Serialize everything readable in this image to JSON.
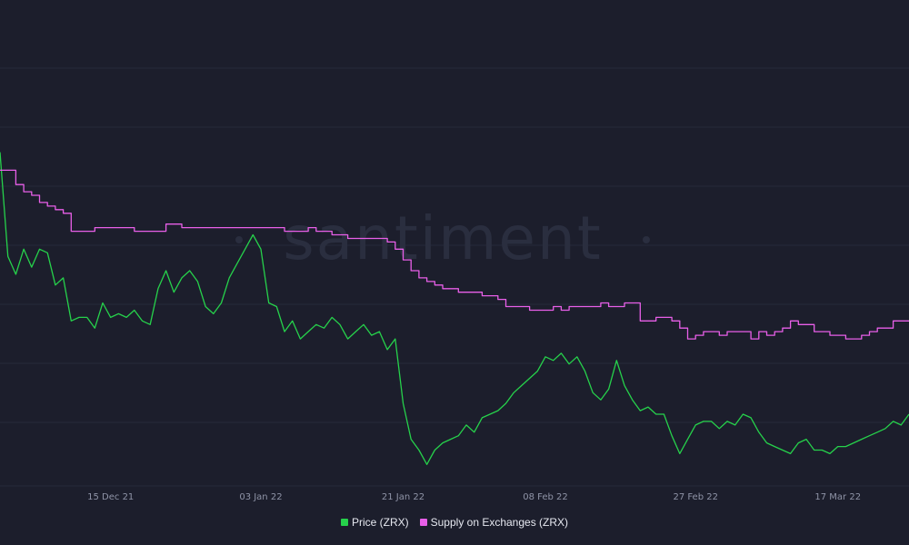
{
  "chart_data": {
    "type": "line",
    "title": "",
    "watermark": "santiment",
    "x_ticks": [
      "15 Dec 21",
      "03 Jan 22",
      "21 Jan 22",
      "08 Feb 22",
      "27 Feb 22",
      "17 Mar 22"
    ],
    "x_range": [
      "2021-12-01",
      "2022-03-26"
    ],
    "grid": true,
    "legend_position": "bottom-center",
    "series": [
      {
        "name": "Price (ZRX)",
        "color": "#26d14b",
        "y_range": [
          0,
          100
        ],
        "points": [
          [
            "2021-12-01",
            93
          ],
          [
            "2021-12-02",
            64
          ],
          [
            "2021-12-03",
            59
          ],
          [
            "2021-12-04",
            66
          ],
          [
            "2021-12-05",
            61
          ],
          [
            "2021-12-06",
            66
          ],
          [
            "2021-12-07",
            65
          ],
          [
            "2021-12-08",
            56
          ],
          [
            "2021-12-09",
            58
          ],
          [
            "2021-12-10",
            46
          ],
          [
            "2021-12-11",
            47
          ],
          [
            "2021-12-12",
            47
          ],
          [
            "2021-12-13",
            44
          ],
          [
            "2021-12-14",
            51
          ],
          [
            "2021-12-15",
            47
          ],
          [
            "2021-12-16",
            48
          ],
          [
            "2021-12-17",
            47
          ],
          [
            "2021-12-18",
            49
          ],
          [
            "2021-12-19",
            46
          ],
          [
            "2021-12-20",
            45
          ],
          [
            "2021-12-21",
            55
          ],
          [
            "2021-12-22",
            60
          ],
          [
            "2021-12-23",
            54
          ],
          [
            "2021-12-24",
            58
          ],
          [
            "2021-12-25",
            60
          ],
          [
            "2021-12-26",
            57
          ],
          [
            "2021-12-27",
            50
          ],
          [
            "2021-12-28",
            48
          ],
          [
            "2021-12-29",
            51
          ],
          [
            "2021-12-30",
            58
          ],
          [
            "2021-12-31",
            62
          ],
          [
            "2022-01-01",
            66
          ],
          [
            "2022-01-02",
            70
          ],
          [
            "2022-01-03",
            66
          ],
          [
            "2022-01-04",
            51
          ],
          [
            "2022-01-05",
            50
          ],
          [
            "2022-01-06",
            43
          ],
          [
            "2022-01-07",
            46
          ],
          [
            "2022-01-08",
            41
          ],
          [
            "2022-01-09",
            43
          ],
          [
            "2022-01-10",
            45
          ],
          [
            "2022-01-11",
            44
          ],
          [
            "2022-01-12",
            47
          ],
          [
            "2022-01-13",
            45
          ],
          [
            "2022-01-14",
            41
          ],
          [
            "2022-01-15",
            43
          ],
          [
            "2022-01-16",
            45
          ],
          [
            "2022-01-17",
            42
          ],
          [
            "2022-01-18",
            43
          ],
          [
            "2022-01-19",
            38
          ],
          [
            "2022-01-20",
            41
          ],
          [
            "2022-01-21",
            23
          ],
          [
            "2022-01-22",
            13
          ],
          [
            "2022-01-23",
            10
          ],
          [
            "2022-01-24",
            6
          ],
          [
            "2022-01-25",
            10
          ],
          [
            "2022-01-26",
            12
          ],
          [
            "2022-01-27",
            13
          ],
          [
            "2022-01-28",
            14
          ],
          [
            "2022-01-29",
            17
          ],
          [
            "2022-01-30",
            15
          ],
          [
            "2022-01-31",
            19
          ],
          [
            "2022-02-01",
            20
          ],
          [
            "2022-02-02",
            21
          ],
          [
            "2022-02-03",
            23
          ],
          [
            "2022-02-04",
            26
          ],
          [
            "2022-02-05",
            28
          ],
          [
            "2022-02-06",
            30
          ],
          [
            "2022-02-07",
            32
          ],
          [
            "2022-02-08",
            36
          ],
          [
            "2022-02-09",
            35
          ],
          [
            "2022-02-10",
            37
          ],
          [
            "2022-02-11",
            34
          ],
          [
            "2022-02-12",
            36
          ],
          [
            "2022-02-13",
            32
          ],
          [
            "2022-02-14",
            26
          ],
          [
            "2022-02-15",
            24
          ],
          [
            "2022-02-16",
            27
          ],
          [
            "2022-02-17",
            35
          ],
          [
            "2022-02-18",
            28
          ],
          [
            "2022-02-19",
            24
          ],
          [
            "2022-02-20",
            21
          ],
          [
            "2022-02-21",
            22
          ],
          [
            "2022-02-22",
            20
          ],
          [
            "2022-02-23",
            20
          ],
          [
            "2022-02-24",
            14
          ],
          [
            "2022-02-25",
            9
          ],
          [
            "2022-02-26",
            13
          ],
          [
            "2022-02-27",
            17
          ],
          [
            "2022-02-28",
            18
          ],
          [
            "2022-03-01",
            18
          ],
          [
            "2022-03-02",
            16
          ],
          [
            "2022-03-03",
            18
          ],
          [
            "2022-03-04",
            17
          ],
          [
            "2022-03-05",
            20
          ],
          [
            "2022-03-06",
            19
          ],
          [
            "2022-03-07",
            15
          ],
          [
            "2022-03-08",
            12
          ],
          [
            "2022-03-09",
            11
          ],
          [
            "2022-03-10",
            10
          ],
          [
            "2022-03-11",
            9
          ],
          [
            "2022-03-12",
            12
          ],
          [
            "2022-03-13",
            13
          ],
          [
            "2022-03-14",
            10
          ],
          [
            "2022-03-15",
            10
          ],
          [
            "2022-03-16",
            9
          ],
          [
            "2022-03-17",
            11
          ],
          [
            "2022-03-18",
            11
          ],
          [
            "2022-03-19",
            12
          ],
          [
            "2022-03-20",
            13
          ],
          [
            "2022-03-21",
            14
          ],
          [
            "2022-03-22",
            15
          ],
          [
            "2022-03-23",
            16
          ],
          [
            "2022-03-24",
            18
          ],
          [
            "2022-03-25",
            17
          ],
          [
            "2022-03-26",
            20
          ]
        ]
      },
      {
        "name": "Supply on Exchanges (ZRX)",
        "color": "#e85fe8",
        "y_range": [
          0,
          100
        ],
        "points": [
          [
            "2021-12-01",
            88
          ],
          [
            "2021-12-02",
            88
          ],
          [
            "2021-12-03",
            84
          ],
          [
            "2021-12-04",
            82
          ],
          [
            "2021-12-05",
            81
          ],
          [
            "2021-12-06",
            79
          ],
          [
            "2021-12-07",
            78
          ],
          [
            "2021-12-08",
            77
          ],
          [
            "2021-12-09",
            76
          ],
          [
            "2021-12-10",
            71
          ],
          [
            "2021-12-11",
            71
          ],
          [
            "2021-12-12",
            71
          ],
          [
            "2021-12-13",
            72
          ],
          [
            "2021-12-14",
            72
          ],
          [
            "2021-12-15",
            72
          ],
          [
            "2021-12-16",
            72
          ],
          [
            "2021-12-17",
            72
          ],
          [
            "2021-12-18",
            71
          ],
          [
            "2021-12-19",
            71
          ],
          [
            "2021-12-20",
            71
          ],
          [
            "2021-12-21",
            71
          ],
          [
            "2021-12-22",
            73
          ],
          [
            "2021-12-23",
            73
          ],
          [
            "2021-12-24",
            72
          ],
          [
            "2021-12-25",
            72
          ],
          [
            "2021-12-26",
            72
          ],
          [
            "2021-12-27",
            72
          ],
          [
            "2021-12-28",
            72
          ],
          [
            "2021-12-29",
            72
          ],
          [
            "2021-12-30",
            72
          ],
          [
            "2021-12-31",
            72
          ],
          [
            "2022-01-01",
            72
          ],
          [
            "2022-01-02",
            72
          ],
          [
            "2022-01-03",
            72
          ],
          [
            "2022-01-04",
            72
          ],
          [
            "2022-01-05",
            72
          ],
          [
            "2022-01-06",
            71
          ],
          [
            "2022-01-07",
            71
          ],
          [
            "2022-01-08",
            71
          ],
          [
            "2022-01-09",
            72
          ],
          [
            "2022-01-10",
            71
          ],
          [
            "2022-01-11",
            71
          ],
          [
            "2022-01-12",
            70
          ],
          [
            "2022-01-13",
            70
          ],
          [
            "2022-01-14",
            69
          ],
          [
            "2022-01-15",
            69
          ],
          [
            "2022-01-16",
            69
          ],
          [
            "2022-01-17",
            69
          ],
          [
            "2022-01-18",
            69
          ],
          [
            "2022-01-19",
            68
          ],
          [
            "2022-01-20",
            66
          ],
          [
            "2022-01-21",
            63
          ],
          [
            "2022-01-22",
            60
          ],
          [
            "2022-01-23",
            58
          ],
          [
            "2022-01-24",
            57
          ],
          [
            "2022-01-25",
            56
          ],
          [
            "2022-01-26",
            55
          ],
          [
            "2022-01-27",
            55
          ],
          [
            "2022-01-28",
            54
          ],
          [
            "2022-01-29",
            54
          ],
          [
            "2022-01-30",
            54
          ],
          [
            "2022-01-31",
            53
          ],
          [
            "2022-02-01",
            53
          ],
          [
            "2022-02-02",
            52
          ],
          [
            "2022-02-03",
            50
          ],
          [
            "2022-02-04",
            50
          ],
          [
            "2022-02-05",
            50
          ],
          [
            "2022-02-06",
            49
          ],
          [
            "2022-02-07",
            49
          ],
          [
            "2022-02-08",
            49
          ],
          [
            "2022-02-09",
            50
          ],
          [
            "2022-02-10",
            49
          ],
          [
            "2022-02-11",
            50
          ],
          [
            "2022-02-12",
            50
          ],
          [
            "2022-02-13",
            50
          ],
          [
            "2022-02-14",
            50
          ],
          [
            "2022-02-15",
            51
          ],
          [
            "2022-02-16",
            50
          ],
          [
            "2022-02-17",
            50
          ],
          [
            "2022-02-18",
            51
          ],
          [
            "2022-02-19",
            51
          ],
          [
            "2022-02-20",
            46
          ],
          [
            "2022-02-21",
            46
          ],
          [
            "2022-02-22",
            47
          ],
          [
            "2022-02-23",
            47
          ],
          [
            "2022-02-24",
            46
          ],
          [
            "2022-02-25",
            44
          ],
          [
            "2022-02-26",
            41
          ],
          [
            "2022-02-27",
            42
          ],
          [
            "2022-02-28",
            43
          ],
          [
            "2022-03-01",
            43
          ],
          [
            "2022-03-02",
            42
          ],
          [
            "2022-03-03",
            43
          ],
          [
            "2022-03-04",
            43
          ],
          [
            "2022-03-05",
            43
          ],
          [
            "2022-03-06",
            41
          ],
          [
            "2022-03-07",
            43
          ],
          [
            "2022-03-08",
            42
          ],
          [
            "2022-03-09",
            43
          ],
          [
            "2022-03-10",
            44
          ],
          [
            "2022-03-11",
            46
          ],
          [
            "2022-03-12",
            45
          ],
          [
            "2022-03-13",
            45
          ],
          [
            "2022-03-14",
            43
          ],
          [
            "2022-03-15",
            43
          ],
          [
            "2022-03-16",
            42
          ],
          [
            "2022-03-17",
            42
          ],
          [
            "2022-03-18",
            41
          ],
          [
            "2022-03-19",
            41
          ],
          [
            "2022-03-20",
            42
          ],
          [
            "2022-03-21",
            43
          ],
          [
            "2022-03-22",
            44
          ],
          [
            "2022-03-23",
            44
          ],
          [
            "2022-03-24",
            46
          ],
          [
            "2022-03-25",
            46
          ],
          [
            "2022-03-26",
            46
          ]
        ]
      }
    ]
  }
}
